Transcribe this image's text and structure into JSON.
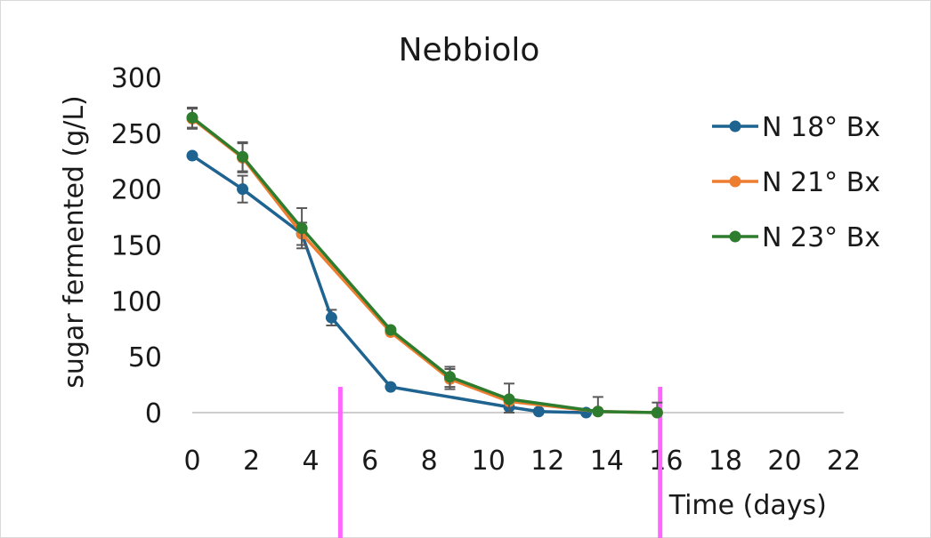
{
  "chart_data": {
    "type": "line",
    "title": "Nebbiolo",
    "xlabel": "Time (days)",
    "ylabel": "sugar fermented (g/L)",
    "xlim": [
      0,
      22
    ],
    "ylim": [
      0,
      300
    ],
    "xticks": [
      "0",
      "2",
      "4",
      "6",
      "8",
      "10",
      "12",
      "14",
      "16",
      "18",
      "20",
      "22"
    ],
    "yticks": [
      "0",
      "50",
      "100",
      "150",
      "200",
      "250",
      "300"
    ],
    "grid": false,
    "legend_position": "right",
    "series": [
      {
        "name": "N 18° Bx",
        "color": "#1f6391",
        "x": [
          0,
          1.7,
          3.7,
          4.7,
          6.7,
          10.7,
          11.7,
          13.3
        ],
        "y": [
          230,
          200,
          160,
          85,
          23,
          5,
          1,
          0
        ],
        "err": [
          0,
          12,
          0,
          7,
          0,
          0,
          0,
          0
        ]
      },
      {
        "name": "N 21° Bx",
        "color": "#ed7d31",
        "x": [
          0,
          1.7,
          3.7,
          6.7,
          8.7,
          10.7,
          13.7,
          15.7
        ],
        "y": [
          263,
          228,
          160,
          72,
          30,
          10,
          1,
          0
        ],
        "err": [
          9,
          13,
          10,
          0,
          9,
          0,
          0,
          0
        ]
      },
      {
        "name": "N 23° Bx",
        "color": "#2e7d2e",
        "x": [
          0,
          1.7,
          3.7,
          6.7,
          8.7,
          10.7,
          13.7,
          15.7
        ],
        "y": [
          264,
          229,
          165,
          74,
          32,
          12,
          1,
          0
        ],
        "err": [
          9,
          13,
          18,
          0,
          9,
          14,
          13,
          9
        ]
      }
    ],
    "markers": [
      {
        "x": 5,
        "color": "#ff66ff"
      },
      {
        "x": 15.8,
        "color": "#ff66ff"
      }
    ]
  }
}
